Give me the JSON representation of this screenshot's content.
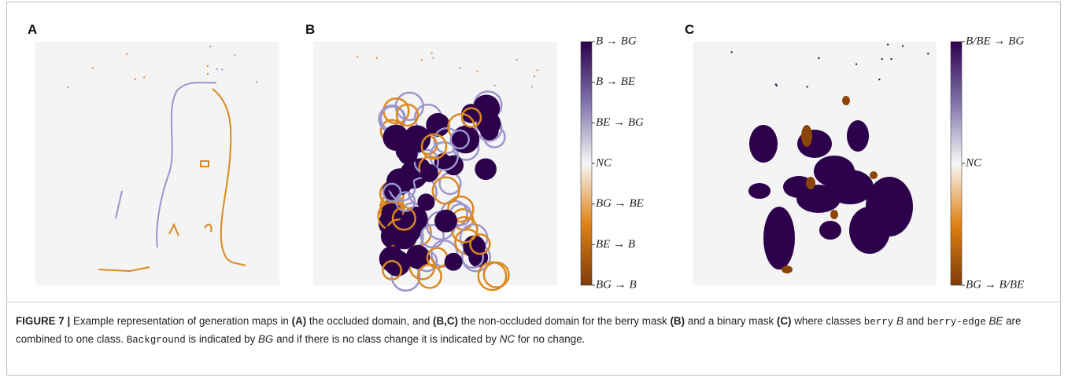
{
  "panels": [
    {
      "label": "A"
    },
    {
      "label": "B",
      "colorbar": [
        "B → BG",
        "B → BE",
        "BE → BG",
        "NC",
        "BG → BE",
        "BE → B",
        "BG → B"
      ]
    },
    {
      "label": "C",
      "colorbar": [
        "B/BE → BG",
        "NC",
        "BG → B/BE"
      ]
    }
  ],
  "caption": {
    "parts": [
      {
        "text": "FIGURE 7 |",
        "style": "bold"
      },
      {
        "text": " Example representation of generation maps in ",
        "style": "normal"
      },
      {
        "text": "(A)",
        "style": "bold"
      },
      {
        "text": " the occluded domain, and ",
        "style": "normal"
      },
      {
        "text": "(B,C)",
        "style": "bold"
      },
      {
        "text": " the non-occluded domain for the berry mask ",
        "style": "normal"
      },
      {
        "text": "(B)",
        "style": "bold"
      },
      {
        "text": " and a binary mask ",
        "style": "normal"
      },
      {
        "text": "(C)",
        "style": "bold"
      },
      {
        "text": " where classes ",
        "style": "normal"
      },
      {
        "text": "berry",
        "style": "mono"
      },
      {
        "text": " B",
        "style": "italic"
      },
      {
        "text": " and ",
        "style": "normal"
      },
      {
        "text": "berry-edge",
        "style": "mono"
      },
      {
        "text": " BE",
        "style": "italic"
      },
      {
        "text": " are combined to one class. ",
        "style": "normal"
      },
      {
        "text": "Background",
        "style": "mono"
      },
      {
        "text": " is indicated by ",
        "style": "normal"
      },
      {
        "text": "BG",
        "style": "italic"
      },
      {
        "text": " and if there is no class change it is indicated by ",
        "style": "normal"
      },
      {
        "text": "NC",
        "style": "italic"
      },
      {
        "text": " for no change.",
        "style": "normal"
      }
    ]
  }
}
